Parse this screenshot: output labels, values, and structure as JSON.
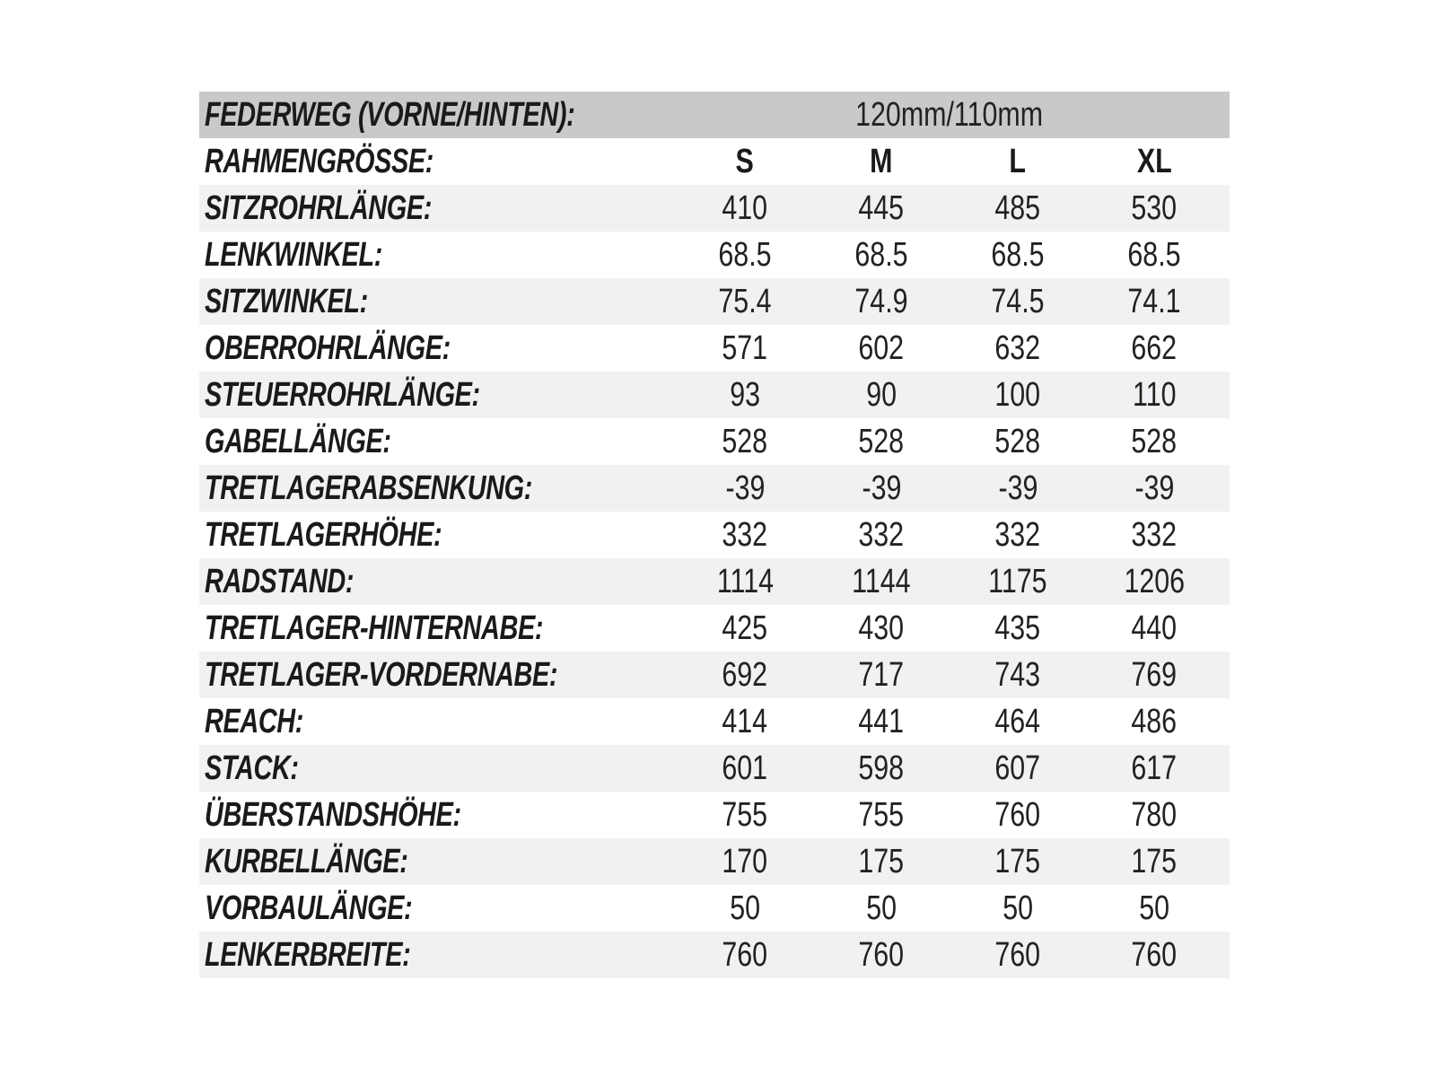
{
  "chart_data": {
    "type": "table",
    "suspension_row": {
      "label": "FEDERWEG (VORNE/HINTEN):",
      "value": "120mm/110mm"
    },
    "size_row": {
      "label": "RAHMENGRÖSSE:",
      "columns": [
        "S",
        "M",
        "L",
        "XL"
      ]
    },
    "rows": [
      {
        "label": "SITZROHRLÄNGE:",
        "values": [
          "410",
          "445",
          "485",
          "530"
        ]
      },
      {
        "label": "LENKWINKEL:",
        "values": [
          "68.5",
          "68.5",
          "68.5",
          "68.5"
        ]
      },
      {
        "label": "SITZWINKEL:",
        "values": [
          "75.4",
          "74.9",
          "74.5",
          "74.1"
        ]
      },
      {
        "label": "OBERROHRLÄNGE:",
        "values": [
          "571",
          "602",
          "632",
          "662"
        ]
      },
      {
        "label": "STEUERROHRLÄNGE:",
        "values": [
          "93",
          "90",
          "100",
          "110"
        ]
      },
      {
        "label": "GABELLÄNGE:",
        "values": [
          "528",
          "528",
          "528",
          "528"
        ]
      },
      {
        "label": "TRETLAGERABSENKUNG:",
        "values": [
          "-39",
          "-39",
          "-39",
          "-39"
        ]
      },
      {
        "label": "TRETLAGERHÖHE:",
        "values": [
          "332",
          "332",
          "332",
          "332"
        ]
      },
      {
        "label": "RADSTAND:",
        "values": [
          "1114",
          "1144",
          "1175",
          "1206"
        ]
      },
      {
        "label": "TRETLAGER-HINTERNABE:",
        "values": [
          "425",
          "430",
          "435",
          "440"
        ]
      },
      {
        "label": "TRETLAGER-VORDERNABE:",
        "values": [
          "692",
          "717",
          "743",
          "769"
        ]
      },
      {
        "label": "REACH:",
        "values": [
          "414",
          "441",
          "464",
          "486"
        ]
      },
      {
        "label": "STACK:",
        "values": [
          "601",
          "598",
          "607",
          "617"
        ]
      },
      {
        "label": "ÜBERSTANDSHÖHE:",
        "values": [
          "755",
          "755",
          "760",
          "780"
        ]
      },
      {
        "label": "KURBELLÄNGE:",
        "values": [
          "170",
          "175",
          "175",
          "175"
        ]
      },
      {
        "label": "VORBAULÄNGE:",
        "values": [
          "50",
          "50",
          "50",
          "50"
        ]
      },
      {
        "label": "LENKERBREITE:",
        "values": [
          "760",
          "760",
          "760",
          "760"
        ]
      }
    ]
  },
  "colors": {
    "header_bg": "#c7c9ca",
    "alt_row_bg": "#f0f1f3",
    "text": "#1a1a1a"
  }
}
